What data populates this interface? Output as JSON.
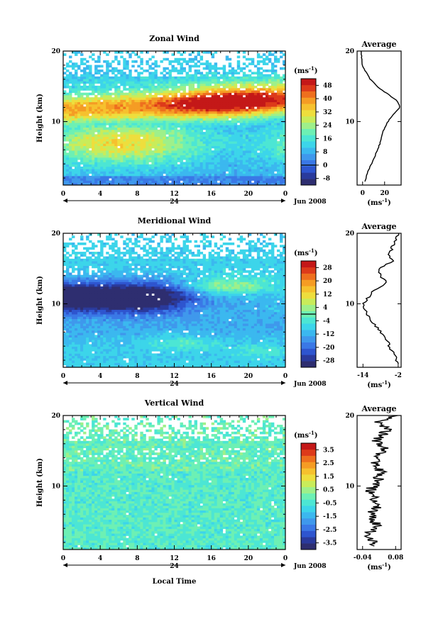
{
  "figure": {
    "x_axis_label": "Local Time",
    "date_label": "Jun 2008",
    "unit_label": "(ms",
    "unit_exp": "-1",
    "avg_unit_label": "(ms",
    "avg_unit_exp": "-1",
    "y_axis_label": "Height (km)"
  },
  "colormap": [
    "#2e2e70",
    "#2a3a9c",
    "#2e55cf",
    "#3a78e6",
    "#3f98ec",
    "#3bb8ef",
    "#3cd5ea",
    "#4ce6d4",
    "#6df0b4",
    "#9ef08a",
    "#c9ec5a",
    "#eede3d",
    "#f6c12e",
    "#f59c24",
    "#ee6f1e",
    "#dd3a1a",
    "#c41818"
  ],
  "chart_data": [
    {
      "type": "heatmap",
      "title": "Zonal Wind",
      "xlabel": "",
      "ylabel": "Height (km)",
      "x_ticks": [
        "0",
        "4",
        "8",
        "12",
        "16",
        "20",
        "0"
      ],
      "x_day_label": "24",
      "y_ticks": [
        "20",
        "10"
      ],
      "xlim": [
        0,
        24
      ],
      "ylim": [
        1,
        20
      ],
      "colorbar": {
        "unit": "(ms-1)",
        "ticks": [
          "48",
          "40",
          "32",
          "24",
          "16",
          "8",
          "0",
          "-8"
        ],
        "min": -12,
        "max": 52,
        "zero_line": 0
      },
      "field": {
        "jet": {
          "core_km_start": 11.7,
          "core_km_end": 13.2,
          "peak_value": 50,
          "peak_time": 18,
          "width_km": 2.2
        },
        "lower_max": 28,
        "lower_km": 7,
        "surface": -2,
        "upper": 10
      },
      "average_profile": {
        "title": "Average",
        "x_ticks": [
          "0",
          "20"
        ],
        "xlim": [
          -5,
          35
        ],
        "heights": [
          1.5,
          3,
          5,
          7,
          8.5,
          10,
          11,
          12,
          13,
          14,
          15,
          16,
          17,
          18,
          19,
          20
        ],
        "values": [
          2,
          5,
          11,
          16,
          18,
          23,
          28,
          34,
          31,
          22,
          13,
          7,
          3,
          0,
          -1,
          -1
        ]
      }
    },
    {
      "type": "heatmap",
      "title": "Meridional Wind",
      "xlabel": "",
      "ylabel": "Height (km)",
      "x_ticks": [
        "0",
        "4",
        "8",
        "12",
        "16",
        "20",
        "0"
      ],
      "x_day_label": "24",
      "y_ticks": [
        "20",
        "10"
      ],
      "xlim": [
        0,
        24
      ],
      "ylim": [
        1,
        20
      ],
      "colorbar": {
        "unit": "(ms-1)",
        "ticks": [
          "28",
          "20",
          "12",
          "4",
          "-4",
          "-12",
          "-20",
          "-28"
        ],
        "min": -32,
        "max": 32,
        "zero_line": 0
      },
      "field": {
        "trough_value": -30,
        "trough_km": 11,
        "trough_end_time": 9,
        "positive_patch": {
          "value": 6,
          "t_center": 18,
          "km_center": 12.5
        },
        "lower_patch": {
          "value": 2,
          "t_center": 13,
          "km_center": 4.5
        }
      },
      "average_profile": {
        "title": "Average",
        "x_ticks": [
          "-14",
          "-2"
        ],
        "xlim": [
          -16,
          -1
        ],
        "heights": [
          1.5,
          2.5,
          4,
          5,
          6,
          7,
          8,
          9,
          10,
          11,
          12,
          13,
          14,
          15,
          16,
          17,
          18,
          19,
          20
        ],
        "values": [
          -2,
          -3,
          -5,
          -6,
          -8,
          -10,
          -12,
          -13,
          -14,
          -12,
          -10,
          -6,
          -8,
          -9,
          -4,
          -5,
          -4,
          -3,
          -2
        ]
      }
    },
    {
      "type": "heatmap",
      "title": "Vertical Wind",
      "xlabel": "Local Time",
      "ylabel": "Height (km)",
      "x_ticks": [
        "0",
        "4",
        "8",
        "12",
        "16",
        "20",
        "0"
      ],
      "x_day_label": "24",
      "y_ticks": [
        "20",
        "10"
      ],
      "xlim": [
        0,
        24
      ],
      "ylim": [
        1,
        20
      ],
      "colorbar": {
        "unit": "(ms-1)",
        "ticks": [
          "3.5",
          "2.5",
          "1.5",
          "0.5",
          "-0.5",
          "-1.5",
          "-2.5",
          "-3.5"
        ],
        "min": -4,
        "max": 4,
        "zero_line": null
      },
      "field": {
        "base_value": -0.3,
        "noise": 0.5
      },
      "average_profile": {
        "title": "Average",
        "x_ticks": [
          "-0.04",
          "0.08"
        ],
        "xlim": [
          -0.06,
          0.1
        ],
        "heights": [
          1.5,
          3,
          4.5,
          6,
          7.5,
          9,
          10.5,
          12,
          13.5,
          15,
          16.5,
          18,
          19,
          20
        ],
        "values": [
          0.0,
          -0.02,
          0.01,
          -0.01,
          0.02,
          -0.02,
          0.01,
          0.03,
          0.0,
          0.04,
          0.01,
          0.05,
          0.02,
          0.07
        ]
      }
    }
  ]
}
